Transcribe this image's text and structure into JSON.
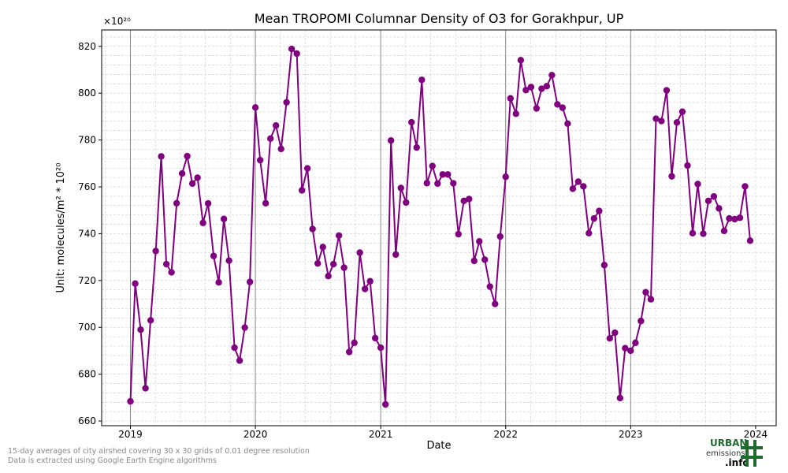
{
  "chart_data": {
    "type": "line",
    "title": "Mean TROPOMI Columnar Density of O3 for Gorakhpur, UP",
    "xlabel": "Date",
    "ylabel": "Unit: molecules/m² * 10²⁰",
    "y_offset_label": "×10²⁰",
    "xlim": [
      "2018-10-09",
      "2024-03-01"
    ],
    "ylim": [
      658,
      827
    ],
    "x_ticks": [
      "2019",
      "2020",
      "2021",
      "2022",
      "2023",
      "2024"
    ],
    "y_ticks": [
      660,
      680,
      700,
      720,
      740,
      760,
      780,
      800,
      820
    ],
    "grid": true,
    "series_color": "#800080",
    "x": [
      "2019-01-01",
      "2019-01-15",
      "2019-01-31",
      "2019-02-14",
      "2019-03-01",
      "2019-03-16",
      "2019-04-01",
      "2019-04-16",
      "2019-05-01",
      "2019-05-16",
      "2019-06-01",
      "2019-06-16",
      "2019-07-01",
      "2019-07-16",
      "2019-08-01",
      "2019-08-16",
      "2019-09-01",
      "2019-09-16",
      "2019-10-01",
      "2019-10-16",
      "2019-11-01",
      "2019-11-16",
      "2019-12-01",
      "2019-12-16",
      "2020-01-01",
      "2020-01-15",
      "2020-01-31",
      "2020-02-14",
      "2020-03-01",
      "2020-03-16",
      "2020-04-01",
      "2020-04-16",
      "2020-05-01",
      "2020-05-16",
      "2020-06-01",
      "2020-06-16",
      "2020-07-01",
      "2020-07-16",
      "2020-08-01",
      "2020-08-16",
      "2020-09-01",
      "2020-09-16",
      "2020-10-01",
      "2020-10-16",
      "2020-11-01",
      "2020-11-16",
      "2020-12-01",
      "2020-12-16",
      "2021-01-01",
      "2021-01-15",
      "2021-01-31",
      "2021-02-14",
      "2021-03-01",
      "2021-03-16",
      "2021-04-01",
      "2021-04-16",
      "2021-05-01",
      "2021-05-16",
      "2021-06-01",
      "2021-06-16",
      "2021-07-01",
      "2021-07-16",
      "2021-08-01",
      "2021-08-16",
      "2021-09-01",
      "2021-09-16",
      "2021-10-01",
      "2021-10-16",
      "2021-11-01",
      "2021-11-16",
      "2021-12-01",
      "2021-12-16",
      "2022-01-01",
      "2022-01-15",
      "2022-01-31",
      "2022-02-14",
      "2022-03-01",
      "2022-03-16",
      "2022-04-01",
      "2022-04-16",
      "2022-05-01",
      "2022-05-16",
      "2022-06-01",
      "2022-06-16",
      "2022-07-01",
      "2022-07-16",
      "2022-08-01",
      "2022-08-16",
      "2022-09-01",
      "2022-09-16",
      "2022-10-01",
      "2022-10-16",
      "2022-11-01",
      "2022-11-16",
      "2022-12-01",
      "2022-12-16",
      "2023-01-01",
      "2023-01-15",
      "2023-01-31",
      "2023-02-14",
      "2023-03-01",
      "2023-03-16",
      "2023-04-01",
      "2023-04-16",
      "2023-05-01",
      "2023-05-16",
      "2023-06-01",
      "2023-06-16",
      "2023-07-01",
      "2023-07-16",
      "2023-08-01",
      "2023-08-16",
      "2023-09-01",
      "2023-09-16",
      "2023-10-01",
      "2023-10-16",
      "2023-11-01",
      "2023-11-16",
      "2023-12-01",
      "2023-12-16"
    ],
    "series": [
      {
        "values": [
          668.4,
          718.7,
          699.0,
          674.0,
          703.0,
          732.6,
          773.0,
          727.0,
          723.5,
          753.0,
          765.7,
          773.1,
          761.4,
          763.9,
          744.6,
          752.9,
          730.5,
          719.2,
          746.3,
          728.5,
          691.3,
          685.8,
          699.9,
          719.4,
          793.9,
          771.4,
          753.0,
          780.6,
          786.2,
          776.2,
          796.1,
          818.9,
          816.9,
          758.5,
          767.9,
          742.0,
          727.3,
          734.3,
          721.9,
          727.0,
          739.2,
          725.5,
          689.5,
          693.4,
          731.9,
          716.4,
          719.7,
          695.4,
          691.3,
          667.1,
          779.8,
          731.1,
          759.5,
          753.3,
          787.6,
          776.8,
          805.7,
          761.6,
          768.9,
          761.4,
          765.3,
          765.3,
          761.5,
          739.8,
          754.0,
          754.8,
          728.4,
          736.7,
          728.9,
          717.4,
          710.0,
          738.8,
          764.3,
          797.8,
          791.2,
          814.1,
          801.3,
          802.6,
          793.5,
          801.9,
          803.0,
          807.7,
          795.2,
          793.8,
          787.0,
          759.2,
          762.2,
          760.2,
          740.2,
          746.5,
          749.7,
          726.6,
          695.3,
          697.7,
          669.8,
          691.1,
          690.0,
          693.4,
          702.7,
          715.0,
          712.0,
          789.1,
          788.1,
          801.2,
          764.5,
          787.5,
          792.1,
          769.1,
          740.2,
          761.2,
          740.0,
          754.0,
          755.9,
          750.8,
          741.2,
          746.5,
          746.2,
          746.8,
          760.2,
          737.0
        ]
      }
    ]
  },
  "footer": {
    "line1": "15-day averages of city airshed covering 30 x 30 grids of 0.01 degree resolution",
    "line2": "Data is extracted using Google Earth Engine algorithms"
  },
  "logo": {
    "line1": "URBAN",
    "line2": "emissions",
    "line3": ".info",
    "color": "#1f6b2e"
  }
}
